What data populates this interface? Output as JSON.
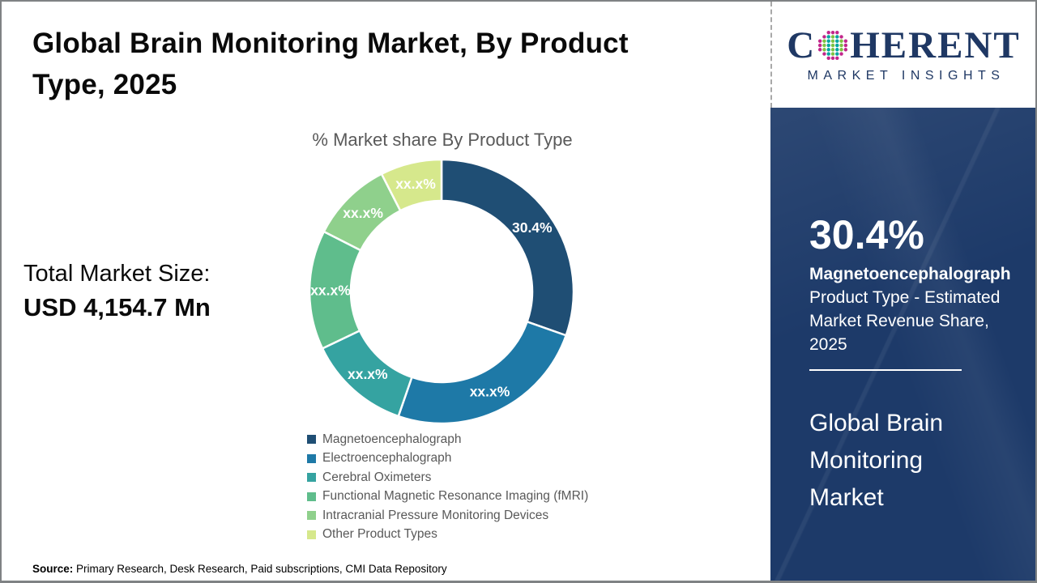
{
  "header": {
    "title": "Global Brain Monitoring Market, By Product Type, 2025",
    "title_lines": [
      "Global Brain Monitoring Market, By Product",
      "Type, 2025"
    ]
  },
  "logo": {
    "prefix": "C",
    "suffix": "HERENT",
    "subtitle": "MARKET INSIGHTS",
    "color": "#1F3864",
    "globe_colors": {
      "ring": "#C2268B",
      "inner_a": "#00A5A0",
      "inner_b": "#7DC242"
    }
  },
  "left_panel": {
    "total_label": "Total Market Size:",
    "total_value": "USD 4,154.7 Mn"
  },
  "chart_data": {
    "type": "pie",
    "subtype": "donut",
    "title": "% Market share By Product Type",
    "start_angle_deg": 0,
    "direction": "clockwise",
    "legend_position": "bottom",
    "segments": [
      {
        "label": "Magnetoencephalograph",
        "display_value": "30.4%",
        "value_pct": 30.4,
        "color": "#1F4E74"
      },
      {
        "label": "Electroencephalograph",
        "display_value": "xx.x%",
        "value_pct": 24.9,
        "color": "#1E79A7"
      },
      {
        "label": "Cerebral Oximeters",
        "display_value": "xx.x%",
        "value_pct": 12.6,
        "color": "#35A3A1"
      },
      {
        "label": "Functional Magnetic Resonance Imaging (fMRI)",
        "display_value": "xx.x%",
        "value_pct": 14.6,
        "color": "#5FBD8C"
      },
      {
        "label": "Intracranial Pressure Monitoring Devices",
        "display_value": "xx.x%",
        "value_pct": 10.0,
        "color": "#8FD08C"
      },
      {
        "label": "Other Product Types",
        "display_value": "xx.x%",
        "value_pct": 7.5,
        "color": "#D6E88C"
      }
    ]
  },
  "sidebar": {
    "background": "#1D3A69",
    "stat_value": "30.4%",
    "stat_product": "Magnetoencephalograph",
    "stat_description": " Product Type - Estimated Market Revenue Share, 2025",
    "market_name": "Global Brain Monitoring Market"
  },
  "footer": {
    "source_label": "Source:",
    "source_text": " Primary Research, Desk Research, Paid subscriptions, CMI Data Repository"
  }
}
